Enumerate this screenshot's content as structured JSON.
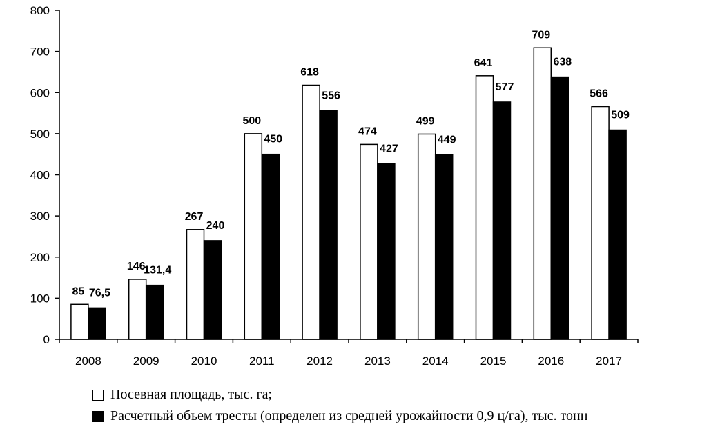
{
  "chart_data": {
    "type": "bar",
    "categories": [
      "2008",
      "2009",
      "2010",
      "2011",
      "2012",
      "2013",
      "2014",
      "2015",
      "2016",
      "2017"
    ],
    "series": [
      {
        "name": "Посевная площадь, тыс. га;",
        "values": [
          85,
          146,
          267,
          500,
          618,
          474,
          499,
          641,
          709,
          566
        ],
        "labels": [
          "85",
          "146",
          "267",
          "500",
          "618",
          "474",
          "499",
          "641",
          "709",
          "566"
        ],
        "color": "#ffffff"
      },
      {
        "name": "Расчетный объем тресты (определен из средней урожайности 0,9 ц/га), тыс. тонн",
        "values": [
          76.5,
          131.4,
          240,
          450,
          556,
          427,
          449,
          577,
          638,
          509
        ],
        "labels": [
          "76,5",
          "131,4",
          "240",
          "450",
          "556",
          "427",
          "449",
          "577",
          "638",
          "509"
        ],
        "color": "#000000"
      }
    ],
    "ylim": [
      0,
      800
    ],
    "yticks": [
      0,
      100,
      200,
      300,
      400,
      500,
      600,
      700,
      800
    ],
    "grid": false,
    "legend_position": "bottom"
  }
}
